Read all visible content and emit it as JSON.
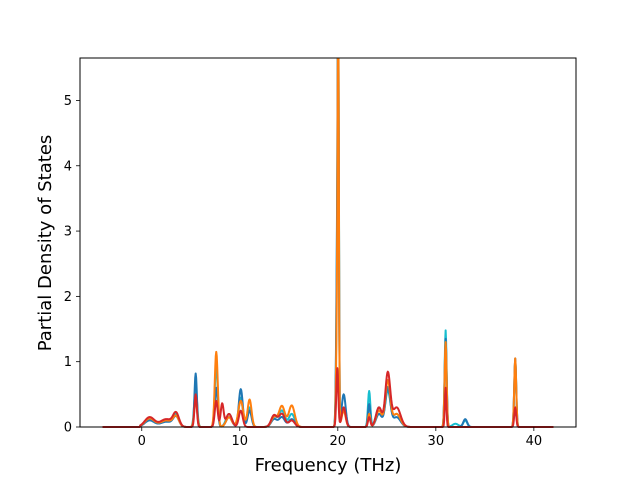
{
  "chart_data": {
    "type": "line",
    "title": "",
    "xlabel": "Frequency (THz)",
    "ylabel": "Partial Density of States",
    "xlim": [
      -6.3,
      44.3
    ],
    "ylim": [
      0,
      5.65
    ],
    "xticks": [
      0,
      10,
      20,
      30,
      40
    ],
    "yticks": [
      0,
      1,
      2,
      3,
      4,
      5
    ],
    "x_range": [
      -4,
      42
    ],
    "grid": false,
    "legend": "none",
    "series": [
      {
        "color": "#17becf",
        "peaks": [
          [
            0.8,
            0.12,
            0.5
          ],
          [
            2.5,
            0.1,
            0.6
          ],
          [
            3.5,
            0.18,
            0.3
          ],
          [
            5.5,
            0.6,
            0.15
          ],
          [
            7.6,
            0.95,
            0.15
          ],
          [
            8.9,
            0.2,
            0.3
          ],
          [
            10.1,
            0.45,
            0.2
          ],
          [
            11,
            0.3,
            0.2
          ],
          [
            13.5,
            0.15,
            0.3
          ],
          [
            14.3,
            0.25,
            0.3
          ],
          [
            15.3,
            0.2,
            0.3
          ],
          [
            19.95,
            2.6,
            0.1
          ],
          [
            20.05,
            5.3,
            0.06
          ],
          [
            20.6,
            0.3,
            0.2
          ],
          [
            23.2,
            0.55,
            0.12
          ],
          [
            24.2,
            0.3,
            0.3
          ],
          [
            25.1,
            0.55,
            0.25
          ],
          [
            26,
            0.2,
            0.4
          ],
          [
            31.0,
            1.48,
            0.1
          ],
          [
            32.0,
            0.05,
            0.3
          ],
          [
            33.0,
            0.1,
            0.2
          ],
          [
            38.1,
            1.0,
            0.1
          ]
        ]
      },
      {
        "color": "#1f77b4",
        "peaks": [
          [
            0.8,
            0.1,
            0.5
          ],
          [
            2.5,
            0.08,
            0.6
          ],
          [
            3.5,
            0.15,
            0.3
          ],
          [
            5.5,
            0.82,
            0.12
          ],
          [
            7.6,
            0.6,
            0.15
          ],
          [
            8.9,
            0.15,
            0.3
          ],
          [
            10.1,
            0.58,
            0.2
          ],
          [
            11,
            0.25,
            0.2
          ],
          [
            13.5,
            0.12,
            0.3
          ],
          [
            14.3,
            0.15,
            0.3
          ],
          [
            15.3,
            0.12,
            0.3
          ],
          [
            19.95,
            2.9,
            0.1
          ],
          [
            20.05,
            4.7,
            0.06
          ],
          [
            20.6,
            0.5,
            0.2
          ],
          [
            23.2,
            0.35,
            0.12
          ],
          [
            24.2,
            0.2,
            0.3
          ],
          [
            25.1,
            0.6,
            0.25
          ],
          [
            26,
            0.15,
            0.4
          ],
          [
            31.0,
            1.35,
            0.1
          ],
          [
            33.0,
            0.12,
            0.2
          ],
          [
            38.1,
            1.05,
            0.1
          ]
        ]
      },
      {
        "color": "#ff7f0e",
        "peaks": [
          [
            0.8,
            0.13,
            0.5
          ],
          [
            2.5,
            0.1,
            0.6
          ],
          [
            3.5,
            0.15,
            0.3
          ],
          [
            5.5,
            0.4,
            0.15
          ],
          [
            7.6,
            1.15,
            0.15
          ],
          [
            8.9,
            0.15,
            0.3
          ],
          [
            10.1,
            0.4,
            0.25
          ],
          [
            11,
            0.42,
            0.2
          ],
          [
            13.5,
            0.15,
            0.3
          ],
          [
            14.3,
            0.32,
            0.3
          ],
          [
            15.3,
            0.33,
            0.3
          ],
          [
            19.95,
            2.0,
            0.1
          ],
          [
            20.05,
            5.4,
            0.06
          ],
          [
            20.6,
            0.25,
            0.2
          ],
          [
            23.2,
            0.2,
            0.12
          ],
          [
            24.2,
            0.25,
            0.3
          ],
          [
            25.1,
            0.7,
            0.25
          ],
          [
            26,
            0.2,
            0.4
          ],
          [
            31.0,
            1.3,
            0.1
          ],
          [
            38.1,
            1.05,
            0.1
          ]
        ]
      },
      {
        "color": "#d62728",
        "peaks": [
          [
            0.8,
            0.15,
            0.5
          ],
          [
            2.5,
            0.12,
            0.6
          ],
          [
            3.5,
            0.2,
            0.3
          ],
          [
            5.5,
            0.5,
            0.12
          ],
          [
            7.6,
            0.4,
            0.15
          ],
          [
            8.2,
            0.35,
            0.15
          ],
          [
            8.9,
            0.2,
            0.3
          ],
          [
            10.1,
            0.25,
            0.2
          ],
          [
            13.5,
            0.18,
            0.3
          ],
          [
            14.3,
            0.2,
            0.3
          ],
          [
            15.3,
            0.1,
            0.3
          ],
          [
            19.95,
            0.9,
            0.1
          ],
          [
            20.6,
            0.3,
            0.2
          ],
          [
            23.2,
            0.15,
            0.12
          ],
          [
            24.2,
            0.3,
            0.3
          ],
          [
            25.1,
            0.82,
            0.25
          ],
          [
            26,
            0.3,
            0.4
          ],
          [
            31.0,
            0.6,
            0.08
          ],
          [
            38.1,
            0.3,
            0.1
          ]
        ]
      }
    ]
  }
}
